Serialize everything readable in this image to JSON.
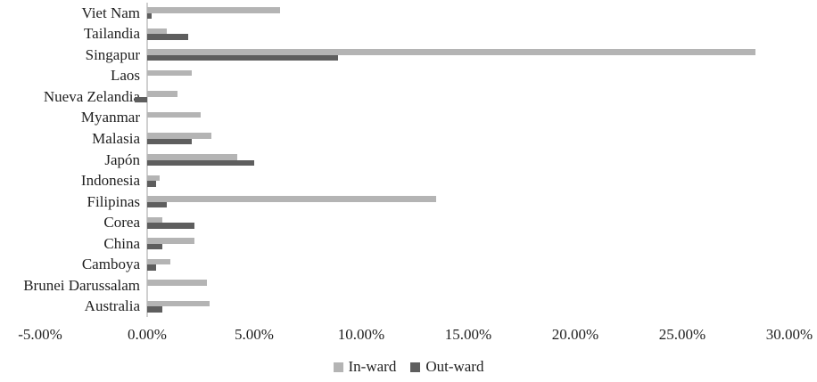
{
  "chart_data": {
    "type": "bar",
    "orientation": "horizontal",
    "title": "",
    "xlabel": "",
    "ylabel": "",
    "grid": false,
    "categories": [
      "Viet Nam",
      "Tailandia",
      "Singapur",
      "Laos",
      "Nueva Zelandia",
      "Myanmar",
      "Malasia",
      "Japón",
      "Indonesia",
      "Filipinas",
      "Corea",
      "China",
      "Camboya",
      "Brunei Darussalam",
      "Australia"
    ],
    "series": [
      {
        "name": "In-ward",
        "color": "#b4b4b4",
        "values": [
          6.2,
          0.9,
          28.4,
          2.1,
          1.4,
          2.5,
          3.0,
          4.2,
          0.6,
          13.5,
          0.7,
          2.2,
          1.1,
          2.8,
          2.9
        ]
      },
      {
        "name": "Out-ward",
        "color": "#5e5e5e",
        "values": [
          0.2,
          1.9,
          8.9,
          0,
          -0.6,
          0,
          2.1,
          5.0,
          0.4,
          0.9,
          2.2,
          0.7,
          0.4,
          0,
          0.7
        ]
      }
    ],
    "x_axis": {
      "unit": "%",
      "min": -5,
      "max": 30,
      "tick_values": [
        -5,
        0,
        5,
        10,
        15,
        20,
        25,
        30
      ],
      "tick_labels": [
        "-5.00%",
        "0.00%",
        "5.00%",
        "10.00%",
        "15.00%",
        "20.00%",
        "25.00%",
        "30.00%"
      ]
    },
    "legend": {
      "position": "bottom",
      "entries": [
        "In-ward",
        "Out-ward"
      ]
    }
  },
  "colors": {
    "background": "#ffffff",
    "axis_line": "#d0d0d0",
    "text": "#1f1f1f",
    "inward": "#b4b4b4",
    "outward": "#5e5e5e"
  }
}
